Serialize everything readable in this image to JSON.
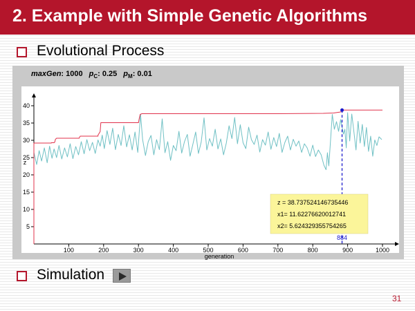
{
  "slide": {
    "title": "2. Example with Simple Genetic Algorithms",
    "bullet1": "Evolutional Process",
    "bullet2": "Simulation",
    "page_number": "31",
    "accent_color": "#b4152b"
  },
  "params": {
    "maxgen_label": "maxGen",
    "maxgen_value": ": 1000",
    "pc_label": "p",
    "pc_sub": "C",
    "pc_value": ": 0.25",
    "pm_label": "p",
    "pm_sub": "M",
    "pm_value": ": 0.01"
  },
  "simulation_button": {
    "icon": "play-icon"
  },
  "chart_data": {
    "type": "line",
    "xlabel": "generation",
    "ylabel": "z",
    "xlim": [
      0,
      1000
    ],
    "ylim": [
      0,
      40
    ],
    "x_ticks": [
      100,
      200,
      300,
      400,
      500,
      600,
      700,
      800,
      900,
      1000
    ],
    "y_ticks": [
      5,
      10,
      15,
      20,
      25,
      30,
      35,
      40
    ],
    "series": [
      {
        "color": "#e0304a",
        "points": [
          [
            0,
            0
          ],
          [
            0,
            29.2
          ],
          [
            50,
            29.2
          ],
          [
            50,
            29.3
          ],
          [
            58,
            29.3
          ],
          [
            60,
            29.5
          ],
          [
            62,
            30.3
          ],
          [
            65,
            30.6
          ],
          [
            130,
            30.6
          ],
          [
            130,
            30.7
          ],
          [
            133,
            31.2
          ],
          [
            184,
            31.2
          ],
          [
            184,
            31.5
          ],
          [
            190,
            32.5
          ],
          [
            192,
            35.1
          ],
          [
            300,
            35.1
          ],
          [
            302,
            36.2
          ],
          [
            305,
            37.5
          ],
          [
            310,
            37.7
          ],
          [
            700,
            37.7
          ],
          [
            830,
            37.8
          ],
          [
            860,
            37.9
          ],
          [
            880,
            38.2
          ],
          [
            884,
            38.74
          ],
          [
            1000,
            38.74
          ]
        ]
      },
      {
        "color": "#6fc0c4",
        "points": [
          [
            0,
            26.5
          ],
          [
            8,
            23
          ],
          [
            15,
            27
          ],
          [
            22,
            24
          ],
          [
            30,
            27.8
          ],
          [
            38,
            23.5
          ],
          [
            45,
            28.3
          ],
          [
            52,
            24.8
          ],
          [
            58,
            27.5
          ],
          [
            65,
            25
          ],
          [
            72,
            28.5
          ],
          [
            80,
            24.6
          ],
          [
            88,
            27.8
          ],
          [
            96,
            25.2
          ],
          [
            104,
            29
          ],
          [
            112,
            24.7
          ],
          [
            120,
            28.2
          ],
          [
            128,
            25.8
          ],
          [
            136,
            29.6
          ],
          [
            144,
            26.1
          ],
          [
            152,
            30.2
          ],
          [
            160,
            27
          ],
          [
            168,
            29.4
          ],
          [
            176,
            26.2
          ],
          [
            184,
            30.1
          ],
          [
            190,
            28.3
          ],
          [
            196,
            31.5
          ],
          [
            202,
            27.6
          ],
          [
            210,
            32.8
          ],
          [
            218,
            28.8
          ],
          [
            226,
            33.5
          ],
          [
            234,
            27.3
          ],
          [
            242,
            31.7
          ],
          [
            250,
            28.5
          ],
          [
            258,
            34.2
          ],
          [
            266,
            28.1
          ],
          [
            274,
            31.6
          ],
          [
            282,
            27.2
          ],
          [
            290,
            32.4
          ],
          [
            298,
            26.5
          ],
          [
            306,
            37.5
          ],
          [
            312,
            30.2
          ],
          [
            320,
            25.6
          ],
          [
            328,
            29.6
          ],
          [
            336,
            31.4
          ],
          [
            344,
            25.8
          ],
          [
            352,
            30.2
          ],
          [
            360,
            27.3
          ],
          [
            368,
            36.2
          ],
          [
            376,
            26.4
          ],
          [
            384,
            29.6
          ],
          [
            392,
            24.2
          ],
          [
            400,
            28.5
          ],
          [
            408,
            27
          ],
          [
            416,
            32.6
          ],
          [
            424,
            26.3
          ],
          [
            432,
            29.6
          ],
          [
            440,
            31.7
          ],
          [
            448,
            25.4
          ],
          [
            456,
            28.8
          ],
          [
            464,
            32.4
          ],
          [
            472,
            26.2
          ],
          [
            480,
            29.5
          ],
          [
            488,
            36.5
          ],
          [
            496,
            27.2
          ],
          [
            504,
            30.5
          ],
          [
            512,
            28.3
          ],
          [
            520,
            33.2
          ],
          [
            528,
            27.5
          ],
          [
            536,
            30.4
          ],
          [
            544,
            25.8
          ],
          [
            552,
            29.2
          ],
          [
            560,
            34.2
          ],
          [
            568,
            30.5
          ],
          [
            576,
            36.6
          ],
          [
            584,
            29
          ],
          [
            592,
            34.5
          ],
          [
            600,
            29.3
          ],
          [
            608,
            27.6
          ],
          [
            616,
            33.8
          ],
          [
            624,
            30.2
          ],
          [
            632,
            28.8
          ],
          [
            640,
            31.5
          ],
          [
            648,
            26.6
          ],
          [
            656,
            30.2
          ],
          [
            664,
            28.6
          ],
          [
            672,
            32.4
          ],
          [
            680,
            27.4
          ],
          [
            688,
            30.8
          ],
          [
            696,
            28.2
          ],
          [
            704,
            32
          ],
          [
            712,
            26.5
          ],
          [
            720,
            29.4
          ],
          [
            728,
            31.2
          ],
          [
            736,
            27.2
          ],
          [
            744,
            30.3
          ],
          [
            752,
            28.3
          ],
          [
            760,
            29.8
          ],
          [
            768,
            26.5
          ],
          [
            776,
            29
          ],
          [
            784,
            27.8
          ],
          [
            792,
            25.4
          ],
          [
            800,
            28.6
          ],
          [
            808,
            25.3
          ],
          [
            816,
            27.2
          ],
          [
            824,
            25.8
          ],
          [
            832,
            22.8
          ],
          [
            838,
            21.5
          ],
          [
            842,
            26.4
          ],
          [
            846,
            22.6
          ],
          [
            850,
            28.5
          ],
          [
            856,
            37.5
          ],
          [
            862,
            33.2
          ],
          [
            868,
            35.4
          ],
          [
            874,
            32.6
          ],
          [
            880,
            36
          ],
          [
            888,
            31.8
          ],
          [
            892,
            33.2
          ],
          [
            896,
            27.8
          ],
          [
            900,
            38
          ],
          [
            906,
            29.8
          ],
          [
            912,
            37.6
          ],
          [
            918,
            32.4
          ],
          [
            924,
            27.2
          ],
          [
            930,
            35.5
          ],
          [
            936,
            29.2
          ],
          [
            942,
            34.6
          ],
          [
            948,
            28.2
          ],
          [
            954,
            33.7
          ],
          [
            960,
            26.8
          ],
          [
            966,
            31.2
          ],
          [
            972,
            25.4
          ],
          [
            978,
            30.1
          ],
          [
            984,
            28.5
          ],
          [
            990,
            31
          ],
          [
            998,
            30.2
          ]
        ]
      }
    ],
    "marker": {
      "x": 884,
      "y": 38.74,
      "label": "884",
      "color": "#1a1acc"
    },
    "annotation": {
      "lines": [
        "z = 38.737524146735446",
        "x1= 11.62276620012741",
        "x2= 5.624329355754265"
      ],
      "background": "#fbf59a"
    }
  }
}
